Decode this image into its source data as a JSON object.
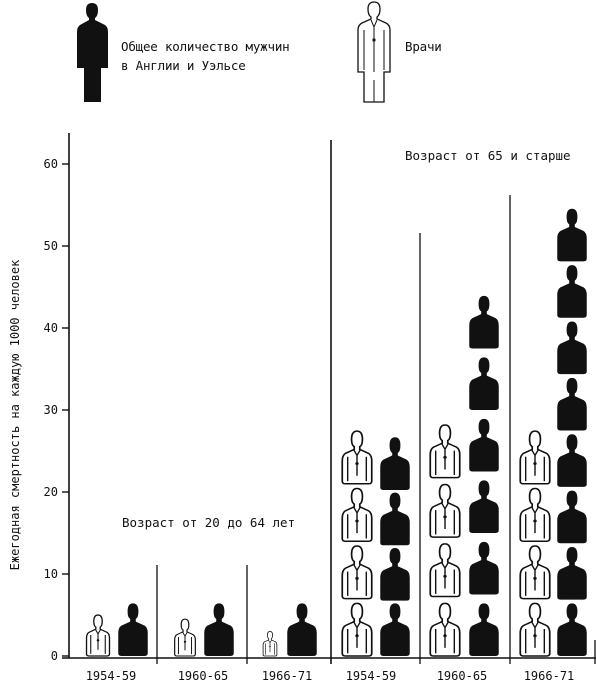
{
  "legend": {
    "men_line1": "Общее количество мужчин",
    "men_line2": "в Англии и Уэльсе",
    "doctors": "Врачи",
    "men_icon": "man-silhouette-black-icon",
    "doctor_icon": "doctor-in-coat-outline-icon"
  },
  "colors": {
    "men": "#111111",
    "doctors": "#ffffff",
    "outline": "#111111"
  },
  "chart_data": {
    "type": "bar",
    "style": "pictogram",
    "title": "",
    "xlabel": "",
    "ylabel": "Ежегодная смертность на каждую 1000 человек",
    "ylim": [
      0,
      60
    ],
    "yticks": [
      0,
      10,
      20,
      30,
      40,
      50,
      60
    ],
    "grid": false,
    "legend_position": "top",
    "categories": [
      "1954-59",
      "1960-65",
      "1966-71",
      "1954-59",
      "1960-65",
      "1966-71"
    ],
    "groups": [
      {
        "label": "Возраст от 20 до 64 лет",
        "categories": [
          0,
          1,
          2
        ]
      },
      {
        "label": "Возраст от 65 и старше",
        "categories": [
          3,
          4,
          5
        ]
      }
    ],
    "series": [
      {
        "name": "Врачи",
        "values": [
          5,
          4.5,
          3,
          28,
          29,
          28
        ]
      },
      {
        "name": "Общее количество мужчин в Англии и Уэльсе",
        "values": [
          8,
          8,
          7.5,
          27,
          45,
          55
        ]
      }
    ]
  }
}
